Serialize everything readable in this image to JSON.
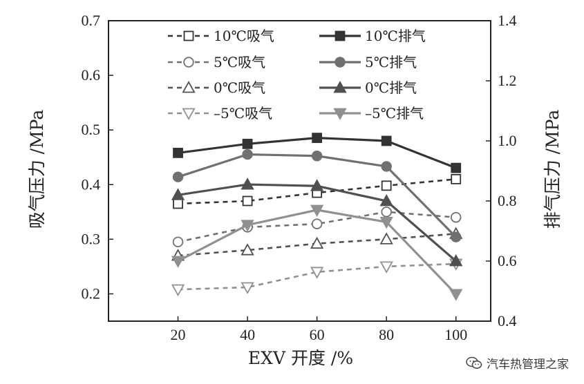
{
  "watermark": {
    "text": "汽车热管理之家",
    "icon": "wechat-icon"
  },
  "chart_data": {
    "type": "line",
    "title": "",
    "xlabel": "EXV 开度 /%",
    "ylabel_left": "吸气压力 /MPa",
    "ylabel_right": "排气压力 /MPa",
    "x": [
      20,
      40,
      60,
      80,
      100
    ],
    "xlim": [
      0,
      110
    ],
    "xticks": [
      "20",
      "40",
      "60",
      "80",
      "100"
    ],
    "ylim_left": [
      0.15,
      0.7
    ],
    "yticks_left": [
      "0.2",
      "0.3",
      "0.4",
      "0.5",
      "0.6",
      "0.7"
    ],
    "ylim_right": [
      0.4,
      1.4
    ],
    "yticks_right": [
      "0.4",
      "0.6",
      "0.8",
      "1.0",
      "1.2",
      "1.4"
    ],
    "grid": false,
    "legend_position": "top",
    "series": [
      {
        "name": "10℃吸气",
        "axis": "left",
        "style": "dashed",
        "marker": "square",
        "filled": false,
        "color": "#333333",
        "values": [
          0.365,
          0.37,
          0.385,
          0.398,
          0.41
        ]
      },
      {
        "name": "10℃排气",
        "axis": "right",
        "style": "solid",
        "marker": "square",
        "filled": true,
        "color": "#333333",
        "values": [
          0.96,
          0.99,
          1.01,
          1.0,
          0.91
        ]
      },
      {
        "name": "5℃吸气",
        "axis": "left",
        "style": "dashed",
        "marker": "circle",
        "filled": false,
        "color": "#707070",
        "values": [
          0.295,
          0.322,
          0.328,
          0.35,
          0.34
        ]
      },
      {
        "name": "5℃排气",
        "axis": "right",
        "style": "solid",
        "marker": "circle",
        "filled": true,
        "color": "#707070",
        "values": [
          0.88,
          0.955,
          0.95,
          0.915,
          0.68
        ]
      },
      {
        "name": "0℃吸气",
        "axis": "left",
        "style": "dashed",
        "marker": "triangle-up",
        "filled": false,
        "color": "#505050",
        "values": [
          0.27,
          0.28,
          0.292,
          0.3,
          0.31
        ]
      },
      {
        "name": "0℃排气",
        "axis": "right",
        "style": "solid",
        "marker": "triangle-up",
        "filled": true,
        "color": "#505050",
        "values": [
          0.82,
          0.855,
          0.85,
          0.8,
          0.6
        ]
      },
      {
        "name": "–5℃吸气",
        "axis": "left",
        "style": "dashed",
        "marker": "triangle-down",
        "filled": false,
        "color": "#909090",
        "values": [
          0.208,
          0.212,
          0.24,
          0.25,
          0.255
        ]
      },
      {
        "name": "–5℃排气",
        "axis": "right",
        "style": "solid",
        "marker": "triangle-down",
        "filled": true,
        "color": "#909090",
        "values": [
          0.6,
          0.72,
          0.77,
          0.73,
          0.49
        ]
      }
    ]
  }
}
